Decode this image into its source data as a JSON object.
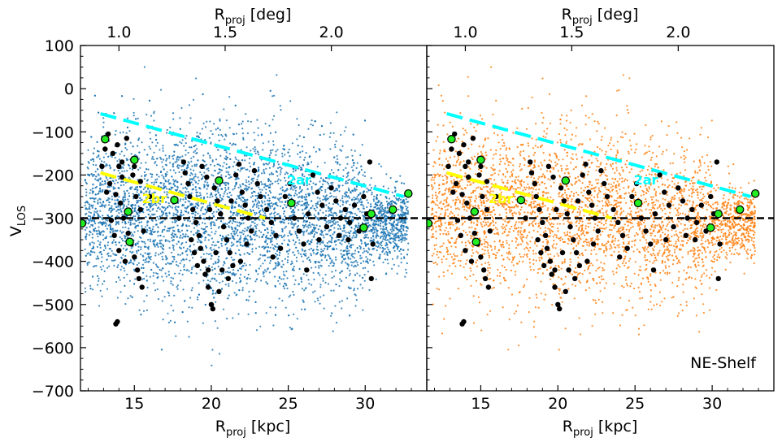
{
  "chart_data": {
    "type": "scatter",
    "panels": [
      {
        "name": "left",
        "dot_color": "#1f77b4",
        "show_ylabel": true,
        "label": ""
      },
      {
        "name": "right",
        "dot_color": "#ff7f0e",
        "show_ylabel": false,
        "label": "NE-Shelf"
      }
    ],
    "xlabel_bottom": "R",
    "xlabel_bottom_sub": "proj",
    "xlabel_bottom_unit": " [kpc]",
    "xlabel_top": "R",
    "xlabel_top_sub": "proj",
    "xlabel_top_unit": " [deg]",
    "ylabel": "V",
    "ylabel_sub": "LOS",
    "xlim": [
      11.5,
      34.0
    ],
    "ylim": [
      -700,
      100
    ],
    "x_ticks": [
      15,
      20,
      25,
      30
    ],
    "y_ticks": [
      100,
      0,
      -100,
      -200,
      -300,
      -400,
      -500,
      -600,
      -700
    ],
    "top_ticks": [
      {
        "label": "1.0",
        "kpc": 14.0
      },
      {
        "label": "1.5",
        "kpc": 20.9
      },
      {
        "label": "2.0",
        "kpc": 27.8
      }
    ],
    "reference_line": {
      "y": -300,
      "style": "dashed",
      "color": "#000000"
    },
    "fit_lines": [
      {
        "name": "2ar",
        "color": "#00ffff",
        "x": [
          12.8,
          32.5
        ],
        "y": [
          -58,
          -250
        ],
        "label": "2ar",
        "label_x": 25.7,
        "label_y": -222
      },
      {
        "name": "2br",
        "color": "#ffff00",
        "x": [
          12.8,
          23.5
        ],
        "y": [
          -195,
          -300
        ],
        "label": "2br",
        "label_x": 16.3,
        "label_y": -265
      }
    ],
    "black_points": [
      [
        13.3,
        -105
      ],
      [
        13.6,
        -150
      ],
      [
        13.9,
        -130
      ],
      [
        14.2,
        -170
      ],
      [
        14.5,
        -115
      ],
      [
        13.4,
        -220
      ],
      [
        13.8,
        -245
      ],
      [
        14.1,
        -265
      ],
      [
        14.3,
        -300
      ],
      [
        14.6,
        -335
      ],
      [
        14.8,
        -360
      ],
      [
        15.0,
        -390
      ],
      [
        15.2,
        -420
      ],
      [
        15.3,
        -440
      ],
      [
        15.5,
        -460
      ],
      [
        13.5,
        -305
      ],
      [
        13.7,
        -340
      ],
      [
        14.0,
        -375
      ],
      [
        14.4,
        -400
      ],
      [
        14.7,
        -285
      ],
      [
        15.1,
        -250
      ],
      [
        15.4,
        -215
      ],
      [
        15.0,
        -180
      ],
      [
        14.9,
        -200
      ],
      [
        13.9,
        -540
      ],
      [
        13.8,
        -545
      ],
      [
        13.2,
        -240
      ],
      [
        12.9,
        -180
      ],
      [
        14.2,
        -205
      ],
      [
        15.6,
        -330
      ],
      [
        17.7,
        -260
      ],
      [
        17.9,
        -300
      ],
      [
        18.2,
        -170
      ],
      [
        18.3,
        -195
      ],
      [
        18.5,
        -220
      ],
      [
        18.6,
        -250
      ],
      [
        18.8,
        -280
      ],
      [
        19.0,
        -310
      ],
      [
        19.2,
        -340
      ],
      [
        19.3,
        -370
      ],
      [
        19.5,
        -400
      ],
      [
        19.6,
        -430
      ],
      [
        19.8,
        -460
      ],
      [
        20.0,
        -500
      ],
      [
        20.1,
        -510
      ],
      [
        19.4,
        -180
      ],
      [
        19.7,
        -205
      ],
      [
        20.2,
        -230
      ],
      [
        20.4,
        -260
      ],
      [
        20.6,
        -290
      ],
      [
        20.8,
        -320
      ],
      [
        21.0,
        -350
      ],
      [
        21.2,
        -380
      ],
      [
        21.4,
        -410
      ],
      [
        21.6,
        -200
      ],
      [
        21.8,
        -175
      ],
      [
        22.0,
        -240
      ],
      [
        22.2,
        -270
      ],
      [
        22.4,
        -300
      ],
      [
        22.6,
        -330
      ],
      [
        22.8,
        -190
      ],
      [
        23.0,
        -220
      ],
      [
        23.2,
        -250
      ],
      [
        18.9,
        -380
      ],
      [
        19.1,
        -410
      ],
      [
        20.3,
        -380
      ],
      [
        20.7,
        -420
      ],
      [
        21.1,
        -440
      ],
      [
        21.9,
        -400
      ],
      [
        22.3,
        -360
      ],
      [
        23.6,
        -280
      ],
      [
        23.9,
        -310
      ],
      [
        24.2,
        -340
      ],
      [
        24.5,
        -370
      ],
      [
        24.8,
        -250
      ],
      [
        25.1,
        -220
      ],
      [
        25.4,
        -300
      ],
      [
        25.7,
        -330
      ],
      [
        26.0,
        -360
      ],
      [
        26.3,
        -290
      ],
      [
        26.6,
        -200
      ],
      [
        26.9,
        -240
      ],
      [
        27.2,
        -270
      ],
      [
        27.5,
        -320
      ],
      [
        27.8,
        -230
      ],
      [
        28.1,
        -260
      ],
      [
        28.4,
        -300
      ],
      [
        28.7,
        -280
      ],
      [
        29.0,
        -310
      ],
      [
        29.3,
        -270
      ],
      [
        29.6,
        -330
      ],
      [
        29.9,
        -250
      ],
      [
        30.1,
        -290
      ],
      [
        30.3,
        -170
      ],
      [
        30.5,
        -360
      ],
      [
        28.9,
        -350
      ],
      [
        27.0,
        -350
      ],
      [
        24.0,
        -390
      ],
      [
        26.2,
        -420
      ],
      [
        30.4,
        -440
      ],
      [
        19.8,
        -420
      ],
      [
        20.5,
        -470
      ],
      [
        18.7,
        -350
      ],
      [
        19.9,
        -280
      ],
      [
        21.3,
        -260
      ],
      [
        16.0,
        -250
      ],
      [
        13.1,
        -140
      ],
      [
        14.0,
        -180
      ],
      [
        15.4,
        -280
      ],
      [
        28.3,
        -340
      ]
    ],
    "green_points": [
      [
        11.6,
        -312
      ],
      [
        13.1,
        -117
      ],
      [
        15.0,
        -165
      ],
      [
        14.6,
        -285
      ],
      [
        14.7,
        -355
      ],
      [
        17.6,
        -258
      ],
      [
        20.5,
        -213
      ],
      [
        25.2,
        -265
      ],
      [
        30.4,
        -290
      ],
      [
        29.9,
        -322
      ],
      [
        31.8,
        -280
      ],
      [
        32.8,
        -243
      ]
    ]
  }
}
